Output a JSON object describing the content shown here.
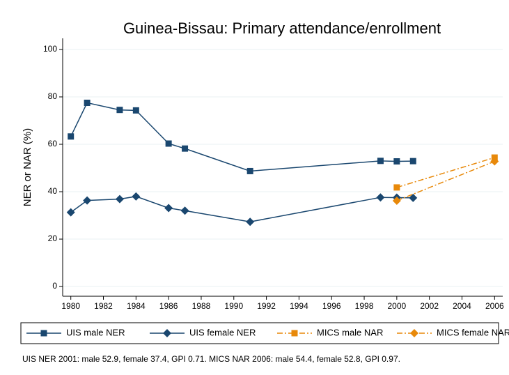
{
  "chart_data": {
    "type": "line",
    "title": "Guinea-Bissau: Primary attendance/enrollment",
    "y_label": "NER or NAR (%)",
    "note": "UIS NER 2001: male 52.9, female 37.4, GPI 0.71. MICS NAR 2006: male 54.4, female 52.8, GPI 0.97.",
    "xlim": [
      1979.5,
      2006.5
    ],
    "xticks": [
      1980,
      1982,
      1984,
      1986,
      1988,
      1990,
      1992,
      1994,
      1996,
      1998,
      2000,
      2002,
      2004,
      2006
    ],
    "ylim": [
      -4.1,
      104.7
    ],
    "yticks": [
      0,
      20,
      40,
      60,
      80,
      100
    ],
    "grid": true,
    "legend": "bottom",
    "series": [
      {
        "name": "UIS male NER",
        "color": "#1a476f",
        "marker": "square",
        "dash": "solid",
        "x": [
          1980,
          1981,
          1983,
          1984,
          1986,
          1987,
          1991,
          1999,
          2000,
          2001
        ],
        "values": [
          63.3,
          77.5,
          74.5,
          74.3,
          60.3,
          58.2,
          48.7,
          53.0,
          52.8,
          52.9
        ]
      },
      {
        "name": "UIS female NER",
        "color": "#1a476f",
        "marker": "diamond",
        "dash": "solid",
        "x": [
          1980,
          1981,
          1983,
          1984,
          1986,
          1987,
          1991,
          1999,
          2000,
          2001
        ],
        "values": [
          31.3,
          36.3,
          36.9,
          38.0,
          33.1,
          32.0,
          27.3,
          37.6,
          37.5,
          37.4
        ]
      },
      {
        "name": "MICS male NAR",
        "color": "#e8890a",
        "marker": "square",
        "dash": "dashdot",
        "x": [
          2000,
          2006
        ],
        "values": [
          41.8,
          54.4
        ]
      },
      {
        "name": "MICS female NAR",
        "color": "#e8890a",
        "marker": "diamond",
        "dash": "dashdot",
        "x": [
          2000,
          2006
        ],
        "values": [
          36.2,
          52.8
        ]
      }
    ]
  }
}
